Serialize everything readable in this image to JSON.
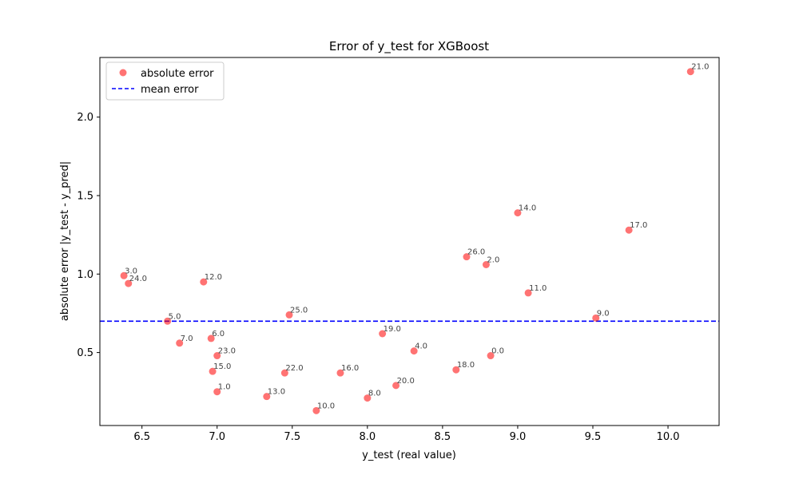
{
  "chart_data": {
    "type": "scatter",
    "title": "Error of y_test for XGBoost",
    "xlabel": "y_test (real value)",
    "ylabel": "absolute error |y_test - y_pred|",
    "xlim": [
      6.22,
      10.34
    ],
    "ylim": [
      0.035,
      2.38
    ],
    "xticks": [
      6.5,
      7.0,
      7.5,
      8.0,
      8.5,
      9.0,
      9.5,
      10.0
    ],
    "yticks": [
      0.5,
      1.0,
      1.5,
      2.0
    ],
    "grid": false,
    "legend_position": "upper-left",
    "series": [
      {
        "name": "absolute error",
        "color": "#ff0000",
        "alpha": 0.55,
        "points": [
          {
            "x": 8.82,
            "y": 0.48,
            "label": "0.0"
          },
          {
            "x": 7.0,
            "y": 0.25,
            "label": "1.0"
          },
          {
            "x": 8.79,
            "y": 1.06,
            "label": "2.0"
          },
          {
            "x": 6.38,
            "y": 0.99,
            "label": "3.0"
          },
          {
            "x": 8.31,
            "y": 0.51,
            "label": "4.0"
          },
          {
            "x": 6.67,
            "y": 0.7,
            "label": "5.0"
          },
          {
            "x": 6.96,
            "y": 0.59,
            "label": "6.0"
          },
          {
            "x": 6.75,
            "y": 0.56,
            "label": "7.0"
          },
          {
            "x": 8.0,
            "y": 0.21,
            "label": "8.0"
          },
          {
            "x": 9.52,
            "y": 0.72,
            "label": "9.0"
          },
          {
            "x": 7.66,
            "y": 0.13,
            "label": "10.0"
          },
          {
            "x": 9.07,
            "y": 0.88,
            "label": "11.0"
          },
          {
            "x": 6.91,
            "y": 0.95,
            "label": "12.0"
          },
          {
            "x": 7.33,
            "y": 0.22,
            "label": "13.0"
          },
          {
            "x": 9.0,
            "y": 1.39,
            "label": "14.0"
          },
          {
            "x": 6.97,
            "y": 0.38,
            "label": "15.0"
          },
          {
            "x": 7.82,
            "y": 0.37,
            "label": "16.0"
          },
          {
            "x": 9.74,
            "y": 1.28,
            "label": "17.0"
          },
          {
            "x": 8.59,
            "y": 0.39,
            "label": "18.0"
          },
          {
            "x": 8.1,
            "y": 0.62,
            "label": "19.0"
          },
          {
            "x": 8.19,
            "y": 0.29,
            "label": "20.0"
          },
          {
            "x": 10.15,
            "y": 2.29,
            "label": "21.0"
          },
          {
            "x": 7.45,
            "y": 0.37,
            "label": "22.0"
          },
          {
            "x": 7.0,
            "y": 0.48,
            "label": "23.0"
          },
          {
            "x": 6.41,
            "y": 0.94,
            "label": "24.0"
          },
          {
            "x": 7.48,
            "y": 0.74,
            "label": "25.0"
          },
          {
            "x": 8.66,
            "y": 1.11,
            "label": "26.0"
          }
        ]
      },
      {
        "name": "mean error",
        "type": "hline",
        "y": 0.7,
        "color": "#0000ff",
        "linestyle": "dashed"
      }
    ]
  }
}
